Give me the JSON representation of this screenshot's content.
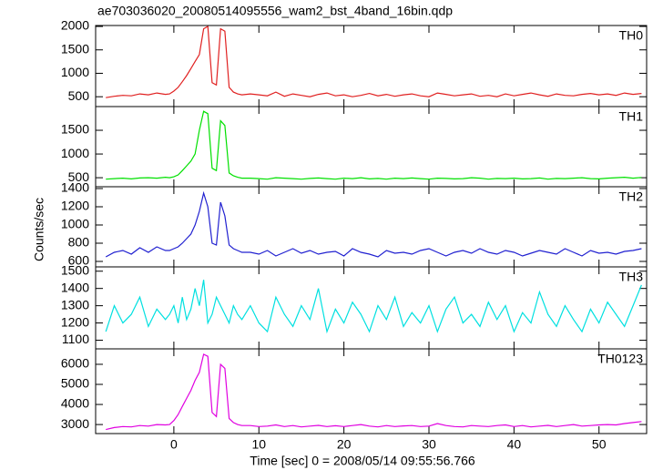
{
  "title": "ae703036020_20080514095556_wam2_bst_4band_16bin.qdp",
  "y_label": "Counts/sec",
  "x_label": "Time [sec] 0 = 2008/05/14 09:55:56.766",
  "chart_data": [
    {
      "type": "line",
      "xlim": [
        -9.2,
        55.6
      ],
      "ylim": [
        290,
        2020
      ],
      "yticks": [
        500,
        1000,
        1500,
        2000
      ],
      "xticks": [
        0,
        10,
        20,
        30,
        40,
        50
      ],
      "x": [
        -8,
        -7,
        -6,
        -5,
        -4,
        -3,
        -2,
        -1,
        -0.5,
        0,
        0.5,
        1,
        1.5,
        2,
        2.5,
        3,
        3.5,
        4,
        4.5,
        5,
        5.5,
        6,
        6.5,
        7,
        7.5,
        8,
        9,
        10,
        11,
        12,
        13,
        14,
        15,
        16,
        17,
        18,
        19,
        20,
        21,
        22,
        23,
        24,
        25,
        26,
        27,
        28,
        29,
        30,
        31,
        32,
        33,
        34,
        35,
        36,
        37,
        38,
        39,
        40,
        41,
        42,
        43,
        44,
        45,
        46,
        47,
        48,
        49,
        50,
        51,
        52,
        53,
        54,
        55
      ],
      "series": [
        {
          "name": "TH0",
          "color": "#e02020",
          "values": [
            480,
            510,
            530,
            520,
            560,
            540,
            580,
            550,
            560,
            620,
            700,
            820,
            950,
            1100,
            1250,
            1400,
            1950,
            2000,
            800,
            750,
            1950,
            1900,
            700,
            600,
            560,
            540,
            560,
            540,
            520,
            600,
            510,
            560,
            530,
            500,
            550,
            580,
            520,
            540,
            500,
            530,
            570,
            520,
            550,
            510,
            540,
            560,
            520,
            500,
            580,
            550,
            520,
            540,
            560,
            510,
            530,
            500,
            560,
            520,
            550,
            580,
            540,
            510,
            560,
            530,
            520,
            550,
            570,
            540,
            560,
            530,
            580,
            550,
            570
          ]
        }
      ]
    },
    {
      "type": "line",
      "xlim": [
        -9.2,
        55.6
      ],
      "ylim": [
        310,
        2000
      ],
      "yticks": [
        500,
        1000,
        1500
      ],
      "xticks": [
        0,
        10,
        20,
        30,
        40,
        50
      ],
      "x": [
        -8,
        -7,
        -6,
        -5,
        -4,
        -3,
        -2,
        -1,
        -0.5,
        0,
        0.5,
        1,
        1.5,
        2,
        2.5,
        3,
        3.5,
        4,
        4.5,
        5,
        5.5,
        6,
        6.5,
        7,
        7.5,
        8,
        9,
        10,
        11,
        12,
        13,
        14,
        15,
        16,
        17,
        18,
        19,
        20,
        21,
        22,
        23,
        24,
        25,
        26,
        27,
        28,
        29,
        30,
        31,
        32,
        33,
        34,
        35,
        36,
        37,
        38,
        39,
        40,
        41,
        42,
        43,
        44,
        45,
        46,
        47,
        48,
        49,
        50,
        51,
        52,
        53,
        54,
        55
      ],
      "series": [
        {
          "name": "TH1",
          "color": "#00e000",
          "values": [
            470,
            480,
            490,
            475,
            495,
            500,
            490,
            510,
            500,
            520,
            560,
            650,
            750,
            850,
            1000,
            1500,
            1900,
            1850,
            700,
            650,
            1700,
            1600,
            600,
            540,
            510,
            490,
            490,
            480,
            470,
            500,
            490,
            480,
            470,
            485,
            495,
            480,
            470,
            490,
            480,
            500,
            475,
            485,
            470,
            490,
            480,
            495,
            480,
            470,
            490,
            485,
            475,
            480,
            500,
            490,
            470,
            485,
            480,
            490,
            475,
            480,
            495,
            470,
            485,
            480,
            490,
            500,
            480,
            475,
            490,
            500,
            510,
            490,
            505
          ]
        }
      ]
    },
    {
      "type": "line",
      "xlim": [
        -9.2,
        55.6
      ],
      "ylim": [
        540,
        1420
      ],
      "yticks": [
        600,
        800,
        1000,
        1200,
        1400
      ],
      "xticks": [
        0,
        10,
        20,
        30,
        40,
        50
      ],
      "x": [
        -8,
        -7,
        -6,
        -5,
        -4,
        -3,
        -2,
        -1,
        -0.5,
        0,
        0.5,
        1,
        1.5,
        2,
        2.5,
        3,
        3.5,
        4,
        4.5,
        5,
        5.5,
        6,
        6.5,
        7,
        7.5,
        8,
        9,
        10,
        11,
        12,
        13,
        14,
        15,
        16,
        17,
        18,
        19,
        20,
        21,
        22,
        23,
        24,
        25,
        26,
        27,
        28,
        29,
        30,
        31,
        32,
        33,
        34,
        35,
        36,
        37,
        38,
        39,
        40,
        41,
        42,
        43,
        44,
        45,
        46,
        47,
        48,
        49,
        50,
        51,
        52,
        53,
        54,
        55
      ],
      "series": [
        {
          "name": "TH2",
          "color": "#2020d0",
          "values": [
            650,
            700,
            720,
            680,
            750,
            700,
            760,
            720,
            720,
            740,
            760,
            800,
            850,
            900,
            1000,
            1150,
            1350,
            1200,
            800,
            780,
            1250,
            1100,
            780,
            740,
            720,
            700,
            700,
            680,
            720,
            660,
            700,
            740,
            690,
            720,
            680,
            700,
            710,
            660,
            740,
            700,
            680,
            650,
            720,
            690,
            700,
            680,
            720,
            740,
            700,
            660,
            700,
            720,
            690,
            740,
            700,
            680,
            720,
            700,
            660,
            690,
            720,
            700,
            680,
            740,
            700,
            660,
            720,
            690,
            700,
            680,
            710,
            720,
            740
          ]
        }
      ]
    },
    {
      "type": "line",
      "xlim": [
        -9.2,
        55.6
      ],
      "ylim": [
        1050,
        1525
      ],
      "yticks": [
        1100,
        1200,
        1300,
        1400,
        1500
      ],
      "xticks": [
        0,
        10,
        20,
        30,
        40,
        50
      ],
      "x": [
        -8,
        -7,
        -6,
        -5,
        -4,
        -3,
        -2,
        -1,
        -0.5,
        0,
        0.5,
        1,
        1.5,
        2,
        2.5,
        3,
        3.5,
        4,
        4.5,
        5,
        5.5,
        6,
        6.5,
        7,
        7.5,
        8,
        9,
        10,
        11,
        12,
        13,
        14,
        15,
        16,
        17,
        18,
        19,
        20,
        21,
        22,
        23,
        24,
        25,
        26,
        27,
        28,
        29,
        30,
        31,
        32,
        33,
        34,
        35,
        36,
        37,
        38,
        39,
        40,
        41,
        42,
        43,
        44,
        45,
        46,
        47,
        48,
        49,
        50,
        51,
        52,
        53,
        54,
        55
      ],
      "series": [
        {
          "name": "TH3",
          "color": "#00e0e0",
          "values": [
            1150,
            1300,
            1200,
            1250,
            1350,
            1180,
            1280,
            1220,
            1250,
            1300,
            1200,
            1350,
            1220,
            1280,
            1400,
            1300,
            1450,
            1200,
            1250,
            1350,
            1300,
            1250,
            1200,
            1300,
            1250,
            1220,
            1300,
            1200,
            1150,
            1350,
            1250,
            1180,
            1300,
            1220,
            1400,
            1150,
            1280,
            1200,
            1320,
            1250,
            1150,
            1300,
            1220,
            1350,
            1180,
            1260,
            1200,
            1300,
            1150,
            1280,
            1350,
            1200,
            1250,
            1180,
            1320,
            1220,
            1300,
            1150,
            1260,
            1200,
            1380,
            1250,
            1180,
            1300,
            1220,
            1150,
            1280,
            1200,
            1320,
            1250,
            1180,
            1300,
            1420
          ]
        }
      ]
    },
    {
      "type": "line",
      "xlim": [
        -9.2,
        55.6
      ],
      "ylim": [
        2550,
        6770
      ],
      "yticks": [
        3000,
        4000,
        5000,
        6000
      ],
      "xticks": [
        0,
        10,
        20,
        30,
        40,
        50
      ],
      "x": [
        -8,
        -7,
        -6,
        -5,
        -4,
        -3,
        -2,
        -1,
        -0.5,
        0,
        0.5,
        1,
        1.5,
        2,
        2.5,
        3,
        3.5,
        4,
        4.5,
        5,
        5.5,
        6,
        6.5,
        7,
        7.5,
        8,
        9,
        10,
        11,
        12,
        13,
        14,
        15,
        16,
        17,
        18,
        19,
        20,
        21,
        22,
        23,
        24,
        25,
        26,
        27,
        28,
        29,
        30,
        31,
        32,
        33,
        34,
        35,
        36,
        37,
        38,
        39,
        40,
        41,
        42,
        43,
        44,
        45,
        46,
        47,
        48,
        49,
        50,
        51,
        52,
        53,
        54,
        55
      ],
      "series": [
        {
          "name": "TH0123",
          "color": "#e000e0",
          "values": [
            2750,
            2850,
            2900,
            2880,
            2950,
            2920,
            3000,
            2980,
            3000,
            3200,
            3500,
            3900,
            4300,
            4700,
            5200,
            5600,
            6500,
            6400,
            3600,
            3400,
            6000,
            5800,
            3300,
            3100,
            3000,
            2950,
            2950,
            2900,
            2920,
            2980,
            2900,
            2950,
            2880,
            2920,
            2960,
            2900,
            2940,
            2900,
            2950,
            3000,
            2920,
            2880,
            2950,
            2900,
            2930,
            2950,
            2900,
            2920,
            3050,
            2950,
            2900,
            2880,
            2950,
            2920,
            2900,
            2950,
            2980,
            2900,
            2950,
            2880,
            2920,
            2960,
            2900,
            2950,
            3000,
            2920,
            2950,
            2980,
            3000,
            2980,
            3050,
            3100,
            3150
          ]
        }
      ]
    }
  ]
}
